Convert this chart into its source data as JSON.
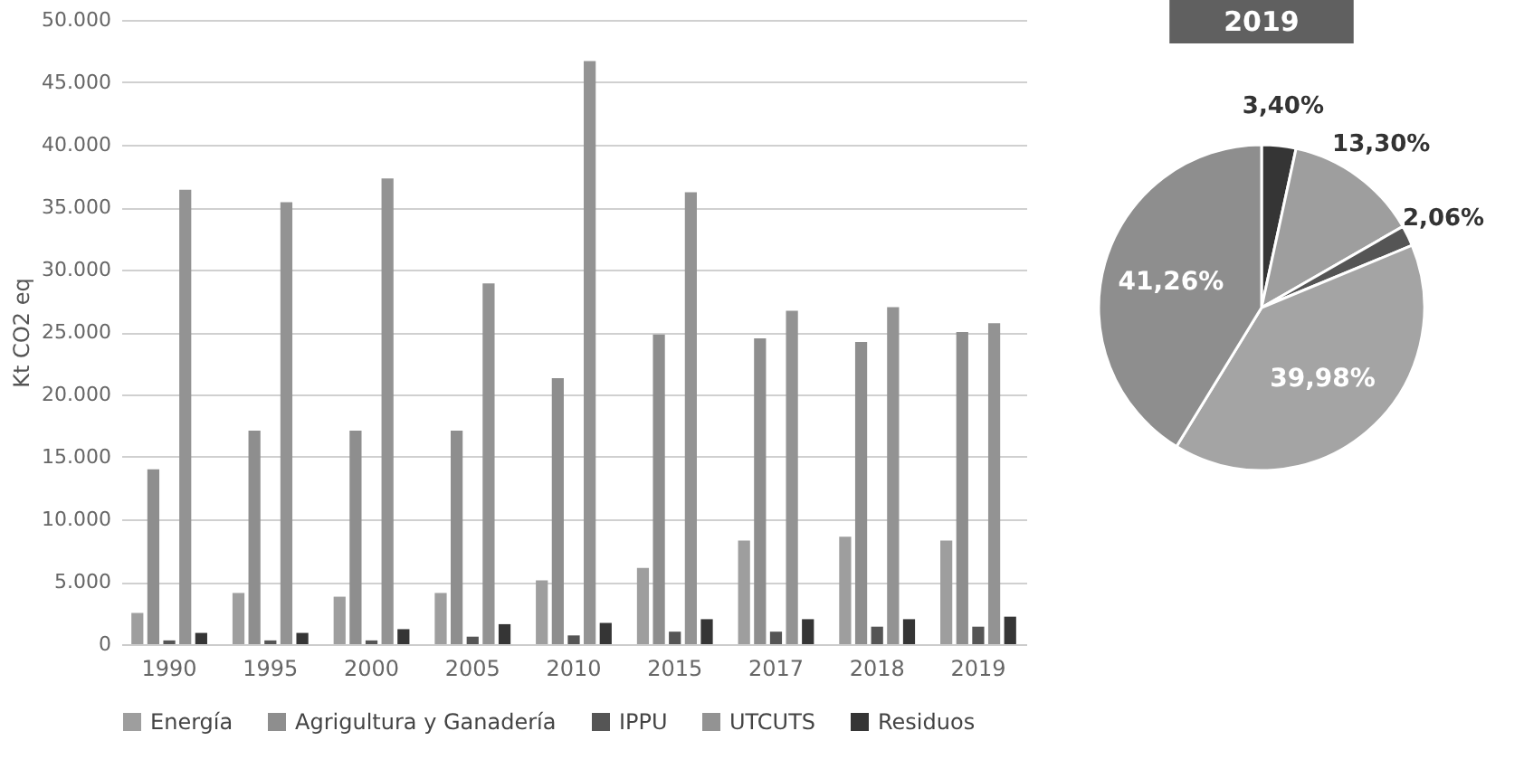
{
  "chart_data": [
    {
      "type": "bar",
      "ylabel": "Kt CO2 eq",
      "categories": [
        "1990",
        "1995",
        "2000",
        "2005",
        "2010",
        "2015",
        "2017",
        "2018",
        "2019"
      ],
      "series": [
        {
          "name": "Energía",
          "color": "#9e9e9e",
          "values": [
            2500,
            4100,
            3800,
            4100,
            5100,
            6100,
            8300,
            8600,
            8300
          ]
        },
        {
          "name": "Agrigultura y Ganadería",
          "color": "#8e8e8e",
          "values": [
            14000,
            17100,
            17100,
            17100,
            21300,
            24800,
            24500,
            24200,
            25000
          ]
        },
        {
          "name": "IPPU",
          "color": "#555555",
          "values": [
            300,
            300,
            300,
            600,
            700,
            1000,
            1000,
            1400,
            1400
          ]
        },
        {
          "name": "UTCUTS",
          "color": "#939393",
          "values": [
            36400,
            35400,
            37300,
            28900,
            46700,
            36200,
            26700,
            27000,
            25700
          ]
        },
        {
          "name": "Residuos",
          "color": "#353535",
          "values": [
            900,
            900,
            1200,
            1600,
            1700,
            2000,
            2000,
            2000,
            2200
          ]
        }
      ],
      "ylim": [
        0,
        50000
      ],
      "yticks": [
        0,
        {
          "value": 5000,
          "label": "5.000"
        },
        {
          "value": 10000,
          "label": "10.000"
        },
        {
          "value": 15000,
          "label": "15.000"
        },
        {
          "value": 20000,
          "label": "20.000"
        },
        {
          "value": 25000,
          "label": "25.000"
        },
        {
          "value": 30000,
          "label": "30.000"
        },
        {
          "value": 35000,
          "label": "35.000"
        },
        {
          "value": 40000,
          "label": "40.000"
        },
        {
          "value": 45000,
          "label": "45.000"
        },
        {
          "value": 50000,
          "label": "50.000"
        }
      ],
      "grid": "y",
      "legend": "bottom"
    },
    {
      "type": "pie",
      "title": "2019",
      "categories": [
        null,
        null,
        null,
        null,
        null
      ],
      "values": [
        3.4,
        13.3,
        2.06,
        39.98,
        41.26
      ],
      "colors": [
        "#353535",
        "#9e9e9e",
        "#555555",
        "#a4a4a4",
        "#8e8e8e"
      ],
      "value_labels": [
        "3,40%",
        "13,30%",
        "2,06%",
        "39,98%",
        "41,26%"
      ]
    }
  ]
}
